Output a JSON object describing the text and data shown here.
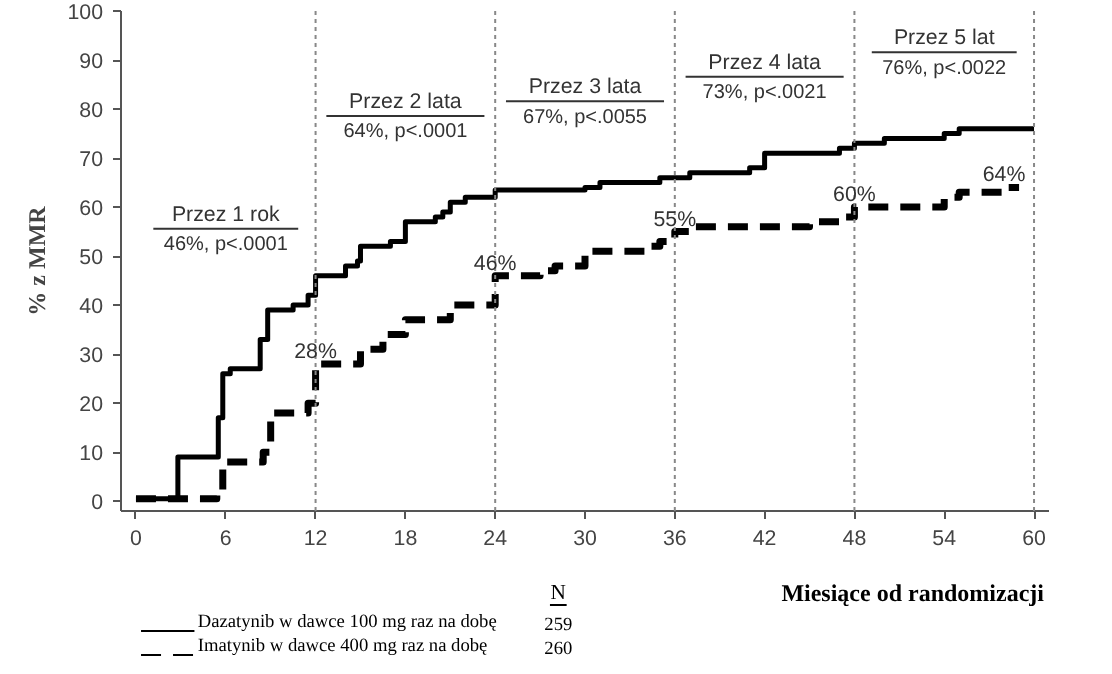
{
  "chart_data": {
    "type": "step",
    "xlabel": "Miesiące od randomizacji",
    "ylabel": "% z MMR",
    "legend_title": "N",
    "xlim": [
      -1,
      61
    ],
    "ylim": [
      -2,
      100
    ],
    "xticks": [
      0,
      6,
      12,
      18,
      24,
      30,
      36,
      42,
      48,
      54,
      60
    ],
    "yticks": [
      0,
      10,
      20,
      30,
      40,
      50,
      60,
      70,
      80,
      90,
      100
    ],
    "grid": false,
    "legend": "bottom",
    "series": [
      {
        "name": "Dazatynib w dawce 100 mg raz na dobę",
        "color": "#000000",
        "line_style": "solid",
        "x": [
          0,
          2.8,
          5.5,
          5.8,
          6.3,
          8.3,
          8.8,
          10.5,
          11.5,
          12,
          14,
          14.8,
          15,
          17,
          18,
          20,
          20.5,
          21,
          22,
          24,
          30,
          31,
          35,
          37,
          41,
          42,
          47,
          48,
          50,
          54,
          55,
          60
        ],
        "values": [
          0.5,
          9,
          17,
          26,
          27,
          33,
          39,
          40,
          42,
          46,
          48,
          49,
          52,
          53,
          57,
          58,
          59,
          61,
          62,
          63.5,
          64,
          65,
          66,
          67,
          68,
          71,
          72,
          73,
          74,
          75,
          76,
          76
        ]
      },
      {
        "name": "Imatynib w dawce 400 mg raz na dobę",
        "color": "#000000",
        "line_style": "dashed",
        "x": [
          0,
          3,
          5.4,
          5.8,
          8.5,
          9,
          11.5,
          12,
          15,
          16.5,
          18,
          21,
          24,
          27,
          28,
          30,
          34,
          35,
          36,
          37,
          45,
          47,
          48,
          54,
          55,
          58,
          59
        ],
        "values": [
          0.5,
          0.5,
          2,
          8,
          10,
          18,
          20,
          28,
          31,
          34,
          37,
          40,
          46,
          47,
          48,
          51,
          52,
          53,
          55,
          56,
          57,
          58,
          60,
          62,
          63,
          64,
          64
        ]
      }
    ],
    "ref_lines": [
      {
        "axis": "x",
        "value": 12,
        "line_style": "dotted",
        "color": "#888888"
      },
      {
        "axis": "x",
        "value": 24,
        "line_style": "dotted",
        "color": "#888888"
      },
      {
        "axis": "x",
        "value": 36,
        "line_style": "dotted",
        "color": "#888888"
      },
      {
        "axis": "x",
        "value": 48,
        "line_style": "dotted",
        "color": "#888888"
      },
      {
        "axis": "x",
        "value": 60,
        "line_style": "dotted",
        "color": "#888888"
      }
    ],
    "annotations": [
      "Przez 1 rok",
      "46%, p<.0001",
      "Przez 2 lata",
      "64%, p<.0001",
      "Przez 3 lata",
      "67%, p<.0055",
      "Przez 4 lata",
      "73%, p<.0021",
      "Przez 5 lat",
      "76%, p<.0022",
      {
        "text": "28%",
        "x": 12,
        "y": 28
      },
      {
        "text": "46%",
        "x": 24,
        "y": 46
      },
      {
        "text": "55%",
        "x": 36,
        "y": 55
      },
      {
        "text": "60%",
        "x": 48,
        "y": 60
      },
      {
        "text": "64%",
        "x": 58,
        "y": 64
      },
      "259",
      "260"
    ]
  }
}
